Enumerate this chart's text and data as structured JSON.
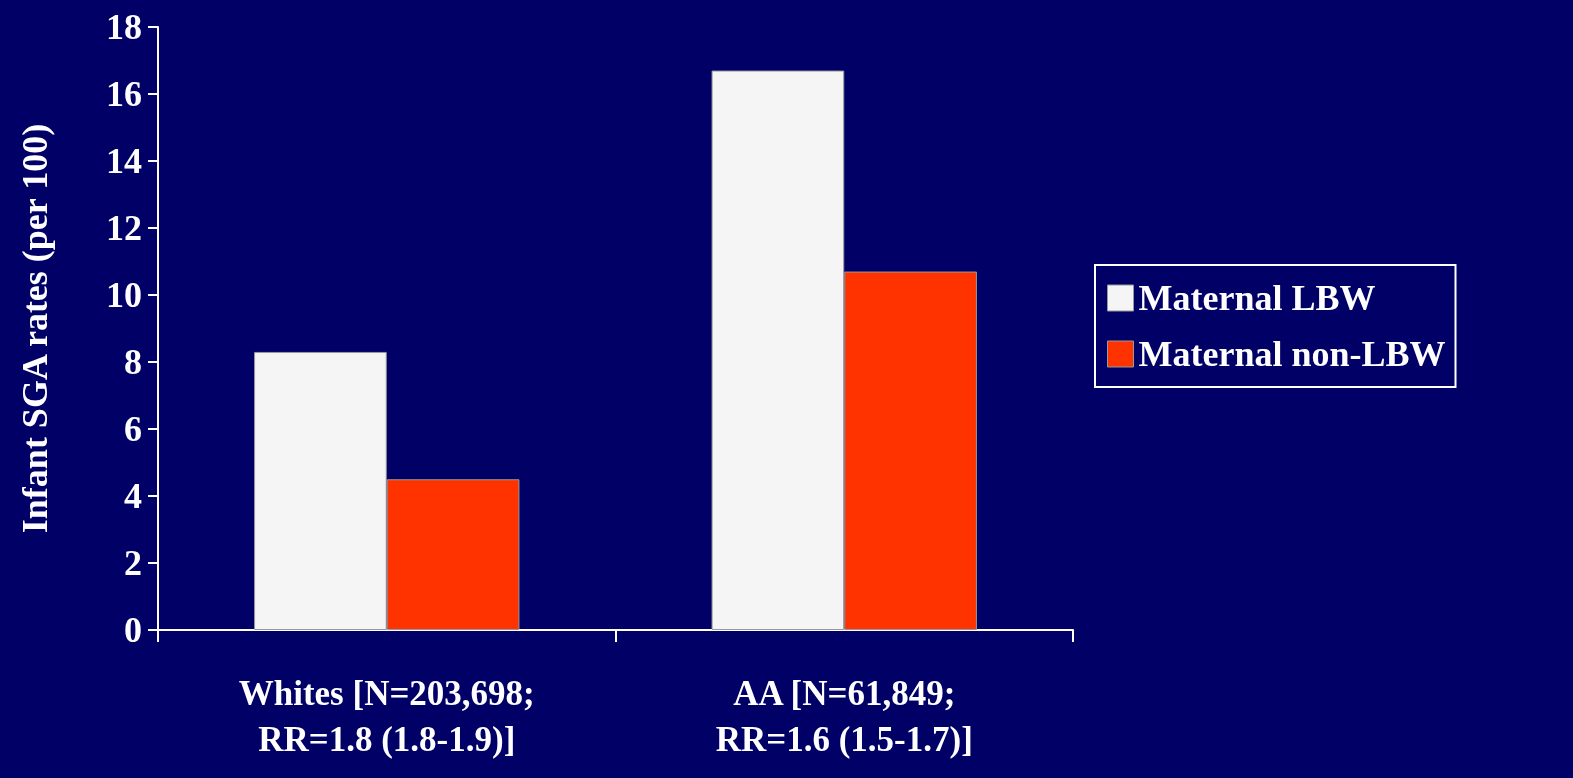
{
  "chart_data": {
    "type": "bar",
    "ylabel": "Infant SGA rates (per 100)",
    "categories": [
      "Whites [N=203,698; RR=1.8 (1.8-1.9)]",
      "AA [N=61,849; RR=1.6 (1.5-1.7)]"
    ],
    "series": [
      {
        "name": "Maternal LBW",
        "color": "#f5f5f5",
        "values": [
          8.3,
          16.7
        ]
      },
      {
        "name": "Maternal non-LBW",
        "color": "#ff3300",
        "values": [
          4.5,
          10.7
        ]
      }
    ],
    "ylim": [
      0,
      18
    ],
    "yticks": [
      0,
      2,
      4,
      6,
      8,
      10,
      12,
      14,
      16,
      18
    ],
    "grid": false,
    "legend": "right"
  }
}
